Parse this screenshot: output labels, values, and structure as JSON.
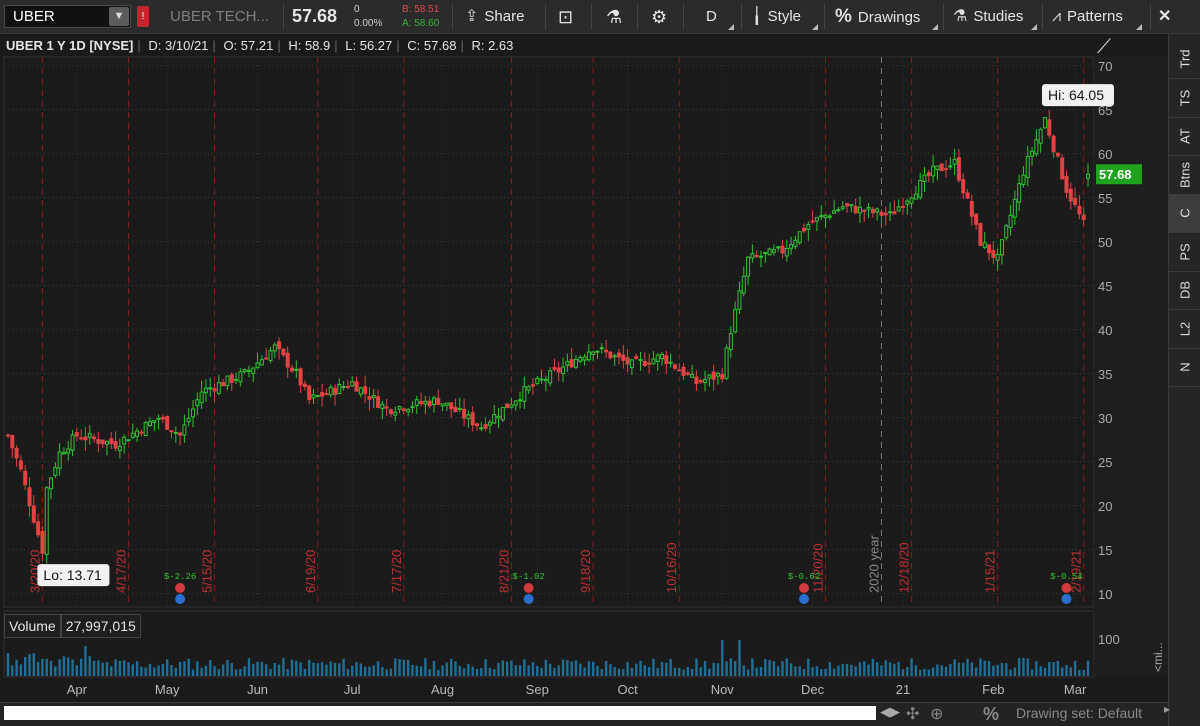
{
  "toolbar": {
    "symbol": "UBER",
    "company": "UBER TECH...",
    "last": "57.68",
    "net_change": "0",
    "pct_change": "0.00%",
    "bid": "B: 58.51",
    "ask": "A: 58.60",
    "share_label": "Share",
    "period_label": "D",
    "style_label": "Style",
    "drawings_label": "Drawings",
    "studies_label": "Studies",
    "patterns_label": "Patterns"
  },
  "header": {
    "description": "UBER 1 Y 1D [NYSE]",
    "date": "D: 3/10/21",
    "open": "O: 57.21",
    "high": "H: 58.9",
    "low": "L: 56.27",
    "close": "C: 57.68",
    "range": "R: 2.63"
  },
  "price_axis": {
    "ticks": [
      "70",
      "65",
      "60",
      "55",
      "50",
      "45",
      "40",
      "35",
      "30",
      "25",
      "20",
      "15",
      "10"
    ],
    "last_label": "57.68"
  },
  "annotations": {
    "high_label": "Hi: 64.05",
    "low_label": "Lo: 13.71"
  },
  "expiration_dates": [
    "3/20/20",
    "4/17/20",
    "5/15/20",
    "6/19/20",
    "7/17/20",
    "8/21/20",
    "9/18/20",
    "10/16/20",
    "11/20/20",
    "12/18/20",
    "1/15/21",
    "2/19/21"
  ],
  "year_marker": "2020 year",
  "dividends": [
    "$-2.26",
    "$-1.02",
    "$-0.62",
    "$-0.54"
  ],
  "volume": {
    "label": "Volume",
    "value": "27,997,015",
    "axis_max": "100",
    "axis_unit": "<mi..."
  },
  "x_axis_labels": [
    "Apr",
    "May",
    "Jun",
    "Jul",
    "Aug",
    "Sep",
    "Oct",
    "Nov",
    "Dec",
    "21",
    "Feb",
    "Mar"
  ],
  "right_tabs": [
    "Trd",
    "TS",
    "AT",
    "Btns",
    "C",
    "PS",
    "DB",
    "L2",
    "N"
  ],
  "bottom": {
    "drawing_set": "Drawing set: Default"
  },
  "colors": {
    "up": "#2fc42f",
    "down": "#e24343",
    "last_bg": "#1fa31f",
    "expiry_line": "#8b1a1a",
    "volume": "#1f6f96"
  },
  "chart_data": {
    "type": "candlestick",
    "title": "UBER 1 Y 1D [NYSE]",
    "ylim": [
      8.5,
      71
    ],
    "x_range": [
      "2020-03-10",
      "2021-03-10"
    ],
    "closes_by_month": [
      {
        "month": "Mar",
        "close": 22.5
      },
      {
        "month": "Apr",
        "close": 27.7
      },
      {
        "month": "May",
        "close": 33.9
      },
      {
        "month": "Jun",
        "close": 31.1
      },
      {
        "month": "Jul",
        "close": 30.9
      },
      {
        "month": "Aug",
        "close": 33.7
      },
      {
        "month": "Sep",
        "close": 36.5
      },
      {
        "month": "Oct",
        "close": 34.2
      },
      {
        "month": "Nov",
        "close": 49.4
      },
      {
        "month": "Dec",
        "close": 51.0
      },
      {
        "month": "Jan",
        "close": 50.6
      },
      {
        "month": "Feb",
        "close": 54.9
      },
      {
        "month": "Mar",
        "close": 57.68
      }
    ],
    "high": 64.05,
    "low": 13.71
  }
}
